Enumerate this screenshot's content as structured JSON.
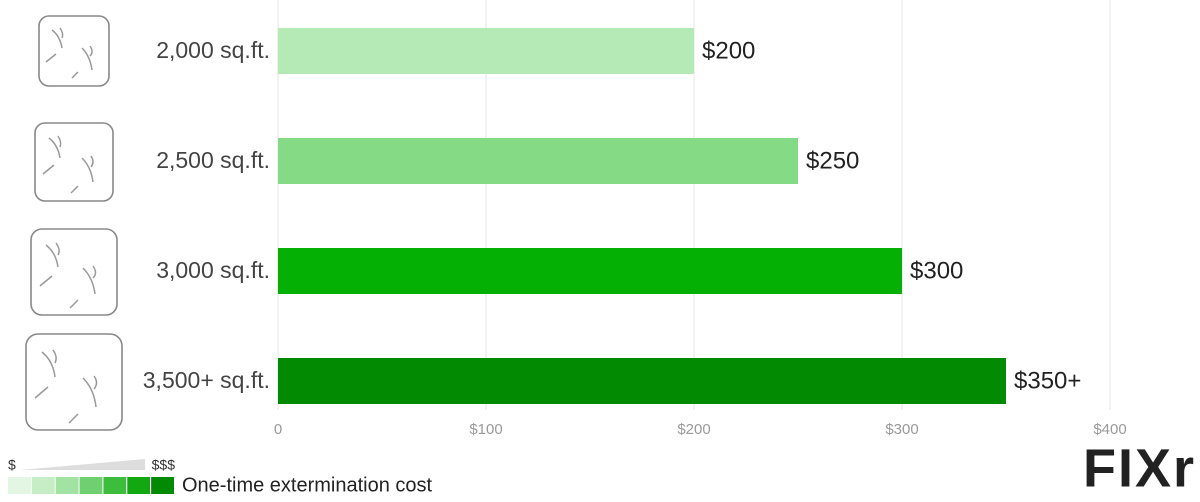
{
  "chart_data": {
    "type": "barh",
    "categories": [
      "2,000 sq.ft.",
      "2,500 sq.ft.",
      "3,000 sq.ft.",
      "3,500+ sq.ft."
    ],
    "values": [
      200,
      250,
      300,
      350
    ],
    "value_labels": [
      "$200",
      "$250",
      "$300",
      "$350+"
    ],
    "colors": [
      "#b5e9b5",
      "#85db85",
      "#04b004",
      "#028a02"
    ],
    "xlim": [
      0,
      420
    ],
    "xticks": [
      0,
      {
        "value": 100,
        "label": "$100"
      },
      {
        "value": 200,
        "label": "$200"
      },
      {
        "value": 300,
        "label": "$300"
      },
      {
        "value": 400,
        "label": "$400"
      }
    ],
    "grid": true,
    "legend": {
      "low": "$",
      "high": "$$$",
      "label": "One-time extermination cost",
      "colors": [
        "#e3f6e3",
        "#c6eec6",
        "#a2e2a2",
        "#6fd06f",
        "#3cbe3c",
        "#12a812",
        "#028a02"
      ]
    },
    "logo": "FIXr"
  }
}
